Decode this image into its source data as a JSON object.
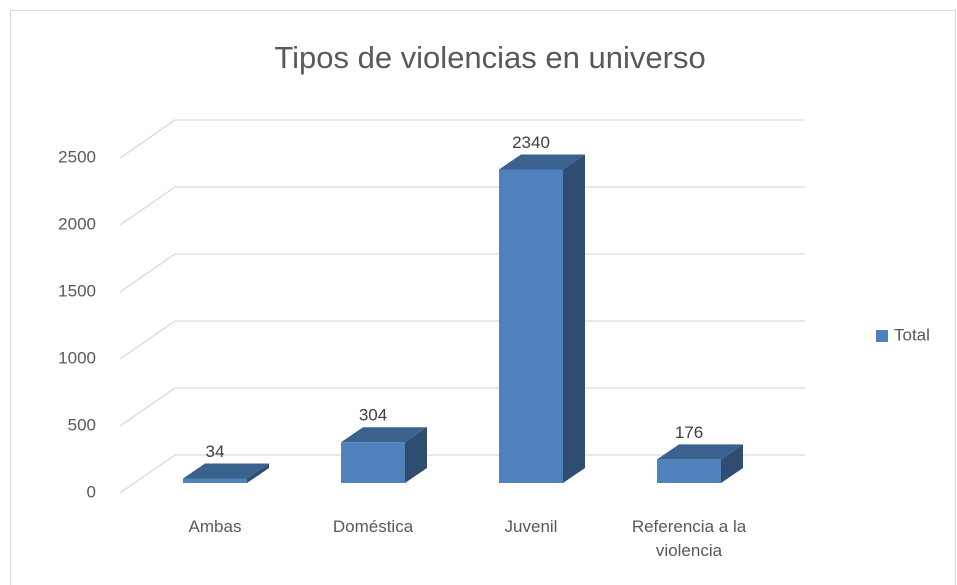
{
  "chart_data": {
    "type": "bar3d",
    "title": "Tipos de violencias en universo",
    "categories": [
      "Ambas",
      "Doméstica",
      "Juvenil",
      "Referencia a la violencia"
    ],
    "series": [
      {
        "name": "Total",
        "color": "#4f81bd",
        "values": [
          34,
          304,
          2340,
          176
        ]
      }
    ],
    "ylim": [
      0,
      2500
    ],
    "yticks": [
      0,
      500,
      1000,
      1500,
      2000,
      2500
    ],
    "grid": true,
    "legend": "right"
  }
}
